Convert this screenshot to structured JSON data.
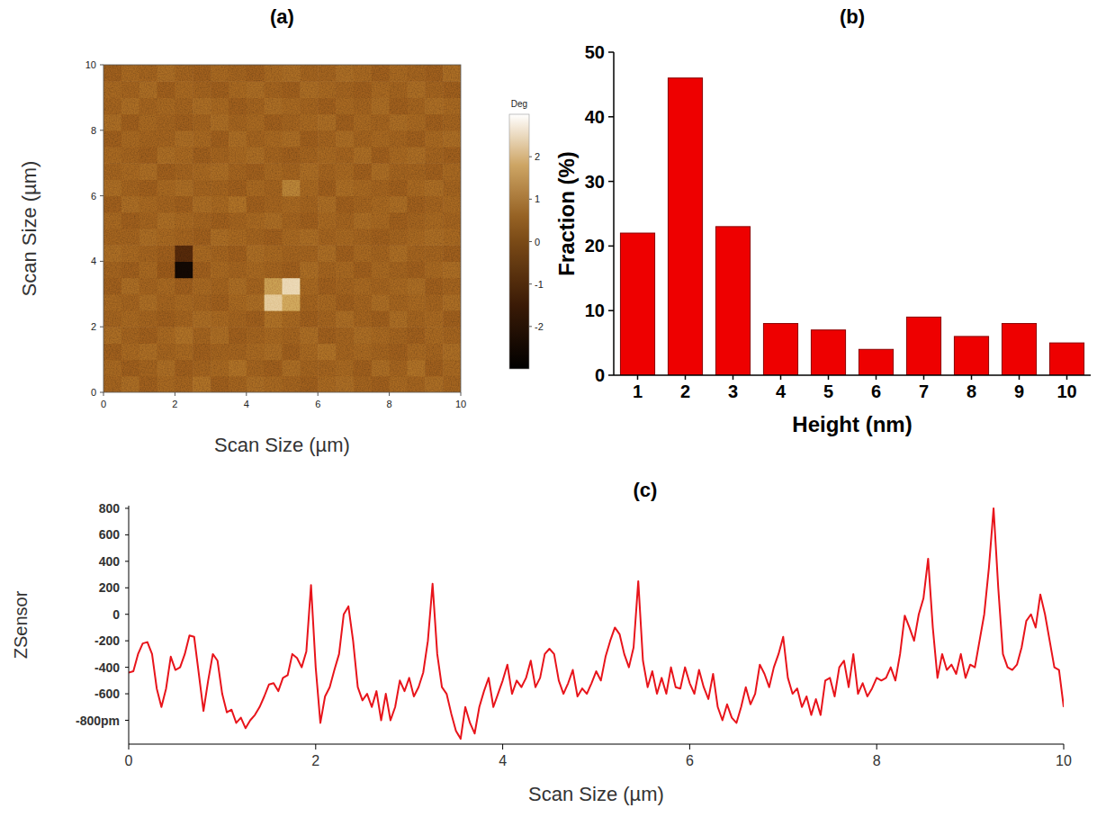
{
  "chart_data": [
    {
      "type": "heatmap",
      "title": "(a)",
      "xlabel": "Scan Size (µm)",
      "ylabel": "Scan Size (µm)",
      "xlim": [
        0,
        10
      ],
      "ylim": [
        0,
        10
      ],
      "xticks": [
        0,
        2,
        4,
        6,
        8,
        10
      ],
      "yticks": [
        0,
        2,
        4,
        6,
        8,
        10
      ],
      "z": [
        [
          0.3,
          0.5,
          0.2,
          0.4,
          0.3,
          0.6,
          0.2,
          0.3,
          0.5,
          0.4,
          0.3,
          0.2,
          0.4,
          0.5,
          0.3,
          0.2,
          0.4,
          0.3,
          0.5,
          0.3
        ],
        [
          0.4,
          0.2,
          0.3,
          0.5,
          0.2,
          0.3,
          0.4,
          0.6,
          0.3,
          0.2,
          0.5,
          0.3,
          0.3,
          0.4,
          0.2,
          0.5,
          0.3,
          0.6,
          0.2,
          0.4
        ],
        [
          0.2,
          0.4,
          0.5,
          0.3,
          0.4,
          0.2,
          0.3,
          0.3,
          0.4,
          0.5,
          0.2,
          0.4,
          0.6,
          0.3,
          0.4,
          0.3,
          0.2,
          0.4,
          0.3,
          0.5
        ],
        [
          0.5,
          0.3,
          0.2,
          0.4,
          0.6,
          0.3,
          0.5,
          0.2,
          0.3,
          0.4,
          0.3,
          0.5,
          0.2,
          0.3,
          0.5,
          0.4,
          0.3,
          0.2,
          0.4,
          0.3
        ],
        [
          0.3,
          0.4,
          0.3,
          0.2,
          0.3,
          0.5,
          0.4,
          0.3,
          0.2,
          0.6,
          0.4,
          0.2,
          0.3,
          0.5,
          0.3,
          0.2,
          0.5,
          0.3,
          0.4,
          0.2
        ],
        [
          0.4,
          0.3,
          0.5,
          0.3,
          0.4,
          0.3,
          0.2,
          0.4,
          0.5,
          2.2,
          1.6,
          0.3,
          0.4,
          0.2,
          0.3,
          0.5,
          0.3,
          0.4,
          0.3,
          0.5
        ],
        [
          0.2,
          0.5,
          0.3,
          0.4,
          0.2,
          0.4,
          0.3,
          0.5,
          0.3,
          1.4,
          2.4,
          0.4,
          0.2,
          0.3,
          0.4,
          0.3,
          0.4,
          0.5,
          0.2,
          0.3
        ],
        [
          0.3,
          0.2,
          0.4,
          0.1,
          -2.6,
          0.2,
          0.4,
          0.3,
          0.4,
          0.3,
          0.2,
          0.5,
          0.3,
          0.4,
          0.2,
          0.4,
          0.3,
          0.2,
          0.4,
          0.5
        ],
        [
          0.5,
          0.4,
          0.3,
          0.2,
          -1.2,
          0.4,
          0.3,
          0.2,
          0.5,
          0.4,
          0.3,
          0.3,
          0.5,
          0.2,
          0.4,
          0.3,
          0.5,
          0.3,
          0.3,
          0.2
        ],
        [
          0.3,
          0.3,
          0.5,
          0.4,
          0.3,
          0.2,
          0.5,
          0.4,
          0.3,
          0.2,
          0.4,
          0.5,
          0.3,
          0.4,
          0.3,
          0.2,
          0.3,
          0.4,
          0.5,
          0.4
        ],
        [
          0.4,
          0.2,
          0.3,
          0.5,
          0.4,
          0.3,
          0.2,
          0.3,
          0.4,
          0.5,
          0.3,
          0.2,
          0.4,
          0.3,
          0.5,
          0.4,
          0.2,
          0.3,
          0.4,
          0.3
        ],
        [
          0.2,
          0.5,
          0.4,
          0.3,
          0.2,
          0.5,
          0.4,
          0.6,
          0.2,
          0.3,
          0.4,
          0.3,
          0.5,
          0.2,
          0.3,
          0.4,
          0.5,
          0.2,
          0.3,
          0.4
        ],
        [
          0.5,
          0.3,
          0.2,
          0.4,
          0.5,
          0.3,
          0.3,
          0.2,
          0.4,
          0.3,
          0.9,
          0.4,
          0.2,
          0.5,
          0.4,
          0.3,
          0.2,
          0.4,
          0.5,
          0.3
        ],
        [
          0.3,
          0.4,
          0.5,
          0.2,
          0.3,
          0.4,
          0.5,
          0.3,
          0.2,
          0.4,
          0.3,
          0.5,
          0.3,
          0.4,
          0.2,
          0.5,
          0.3,
          0.3,
          0.2,
          0.4
        ],
        [
          0.4,
          0.3,
          0.2,
          0.5,
          0.4,
          0.2,
          0.3,
          0.4,
          0.5,
          0.3,
          0.2,
          0.3,
          0.4,
          0.3,
          0.5,
          0.2,
          0.4,
          0.5,
          0.3,
          0.2
        ],
        [
          0.2,
          0.4,
          0.3,
          0.3,
          0.5,
          0.4,
          0.2,
          0.5,
          0.3,
          0.4,
          0.5,
          0.2,
          0.3,
          0.5,
          0.3,
          0.4,
          0.3,
          0.2,
          0.4,
          0.5
        ],
        [
          0.5,
          0.2,
          0.4,
          0.3,
          0.2,
          0.3,
          0.5,
          0.3,
          0.4,
          0.2,
          0.3,
          0.4,
          0.5,
          0.2,
          0.4,
          0.3,
          0.5,
          0.4,
          0.2,
          0.3
        ],
        [
          0.3,
          0.5,
          0.3,
          0.4,
          0.3,
          0.5,
          0.4,
          0.2,
          0.3,
          0.5,
          0.4,
          0.3,
          0.2,
          0.4,
          0.3,
          0.5,
          0.2,
          0.3,
          0.5,
          0.4
        ],
        [
          0.4,
          0.3,
          0.5,
          0.2,
          0.4,
          0.3,
          0.2,
          0.4,
          0.5,
          0.3,
          0.2,
          0.5,
          0.4,
          0.3,
          0.2,
          0.4,
          0.3,
          0.5,
          0.3,
          0.2
        ],
        [
          0.2,
          0.4,
          0.3,
          0.5,
          0.3,
          0.2,
          0.4,
          0.3,
          0.2,
          0.4,
          0.5,
          0.3,
          0.3,
          0.5,
          0.4,
          0.2,
          0.4,
          0.3,
          0.2,
          0.5
        ]
      ],
      "colorbar": {
        "title": "Deg",
        "range": [
          -3,
          3
        ],
        "ticks": [
          -2,
          -1,
          0,
          1,
          2
        ]
      }
    },
    {
      "type": "bar",
      "title": "(b)",
      "xlabel": "Height (nm)",
      "ylabel": "Fraction (%)",
      "categories": [
        "1",
        "2",
        "3",
        "4",
        "5",
        "6",
        "7",
        "8",
        "9",
        "10"
      ],
      "values": [
        22,
        46,
        23,
        8,
        7,
        4,
        9,
        6,
        8,
        5
      ],
      "color": "#ee0000",
      "ylim": [
        0,
        50
      ],
      "yticks": [
        0,
        10,
        20,
        30,
        40,
        50
      ],
      "grid": false
    },
    {
      "type": "line",
      "title": "(c)",
      "xlabel": "Scan Size (µm)",
      "ylabel": "ZSensor",
      "color": "#e8141b",
      "xlim": [
        0,
        10
      ],
      "ylim": [
        -980,
        820
      ],
      "xticks": [
        0,
        2,
        4,
        6,
        8,
        10
      ],
      "yticks": [
        800,
        600,
        400,
        200,
        0,
        -200,
        -400,
        -600,
        {
          "value": -800,
          "label": "-800pm"
        }
      ],
      "x": [
        0,
        0.05,
        0.1,
        0.15,
        0.2,
        0.25,
        0.3,
        0.35,
        0.4,
        0.45,
        0.5,
        0.55,
        0.6,
        0.65,
        0.7,
        0.75,
        0.8,
        0.85,
        0.9,
        0.95,
        1,
        1.05,
        1.1,
        1.15,
        1.2,
        1.25,
        1.3,
        1.35,
        1.4,
        1.45,
        1.5,
        1.55,
        1.6,
        1.65,
        1.7,
        1.75,
        1.8,
        1.85,
        1.9,
        1.95,
        2,
        2.05,
        2.1,
        2.15,
        2.2,
        2.25,
        2.3,
        2.35,
        2.4,
        2.45,
        2.5,
        2.55,
        2.6,
        2.65,
        2.7,
        2.75,
        2.8,
        2.85,
        2.9,
        2.95,
        3,
        3.05,
        3.1,
        3.15,
        3.2,
        3.25,
        3.3,
        3.35,
        3.4,
        3.45,
        3.5,
        3.55,
        3.6,
        3.65,
        3.7,
        3.75,
        3.8,
        3.85,
        3.9,
        3.95,
        4,
        4.05,
        4.1,
        4.15,
        4.2,
        4.25,
        4.3,
        4.35,
        4.4,
        4.45,
        4.5,
        4.55,
        4.6,
        4.65,
        4.7,
        4.75,
        4.8,
        4.85,
        4.9,
        4.95,
        5,
        5.05,
        5.1,
        5.15,
        5.2,
        5.25,
        5.3,
        5.35,
        5.4,
        5.45,
        5.5,
        5.55,
        5.6,
        5.65,
        5.7,
        5.75,
        5.8,
        5.85,
        5.9,
        5.95,
        6,
        6.05,
        6.1,
        6.15,
        6.2,
        6.25,
        6.3,
        6.35,
        6.4,
        6.45,
        6.5,
        6.55,
        6.6,
        6.65,
        6.7,
        6.75,
        6.8,
        6.85,
        6.9,
        6.95,
        7,
        7.05,
        7.1,
        7.15,
        7.2,
        7.25,
        7.3,
        7.35,
        7.4,
        7.45,
        7.5,
        7.55,
        7.6,
        7.65,
        7.7,
        7.75,
        7.8,
        7.85,
        7.9,
        7.95,
        8,
        8.05,
        8.1,
        8.15,
        8.2,
        8.25,
        8.3,
        8.35,
        8.4,
        8.45,
        8.5,
        8.55,
        8.6,
        8.65,
        8.7,
        8.75,
        8.8,
        8.85,
        8.9,
        8.95,
        9,
        9.05,
        9.1,
        9.15,
        9.2,
        9.25,
        9.3,
        9.35,
        9.4,
        9.45,
        9.5,
        9.55,
        9.6,
        9.65,
        9.7,
        9.75,
        9.8,
        9.85,
        9.9,
        9.95,
        10
      ],
      "values": [
        -440,
        -430,
        -300,
        -220,
        -210,
        -300,
        -560,
        -700,
        -560,
        -320,
        -420,
        -400,
        -300,
        -160,
        -170,
        -450,
        -730,
        -500,
        -300,
        -350,
        -600,
        -740,
        -720,
        -820,
        -780,
        -860,
        -800,
        -760,
        -700,
        -620,
        -530,
        -520,
        -580,
        -480,
        -460,
        -300,
        -330,
        -400,
        -280,
        220,
        -400,
        -820,
        -620,
        -550,
        -420,
        -300,
        0,
        60,
        -200,
        -550,
        -650,
        -600,
        -700,
        -580,
        -800,
        -600,
        -800,
        -700,
        -500,
        -580,
        -480,
        -620,
        -550,
        -440,
        -200,
        230,
        -300,
        -550,
        -600,
        -750,
        -880,
        -940,
        -700,
        -820,
        -900,
        -700,
        -580,
        -480,
        -700,
        -600,
        -500,
        -380,
        -600,
        -500,
        -550,
        -480,
        -350,
        -550,
        -480,
        -300,
        -260,
        -300,
        -500,
        -600,
        -520,
        -420,
        -620,
        -560,
        -600,
        -520,
        -430,
        -500,
        -320,
        -200,
        -100,
        -150,
        -300,
        -400,
        -250,
        250,
        -350,
        -550,
        -430,
        -600,
        -480,
        -600,
        -400,
        -550,
        -560,
        -400,
        -520,
        -600,
        -420,
        -550,
        -640,
        -450,
        -700,
        -800,
        -680,
        -780,
        -820,
        -700,
        -550,
        -680,
        -600,
        -380,
        -450,
        -550,
        -400,
        -300,
        -170,
        -480,
        -600,
        -560,
        -700,
        -620,
        -760,
        -640,
        -760,
        -500,
        -480,
        -620,
        -400,
        -350,
        -550,
        -300,
        -600,
        -520,
        -620,
        -560,
        -480,
        -500,
        -480,
        -400,
        -500,
        -300,
        -10,
        -100,
        -200,
        0,
        120,
        420,
        -100,
        -480,
        -300,
        -420,
        -380,
        -450,
        -300,
        -480,
        -380,
        -400,
        -200,
        0,
        350,
        800,
        200,
        -300,
        -400,
        -420,
        -380,
        -250,
        -50,
        0,
        -100,
        150,
        0,
        -200,
        -400,
        -420,
        -700
      ]
    }
  ]
}
